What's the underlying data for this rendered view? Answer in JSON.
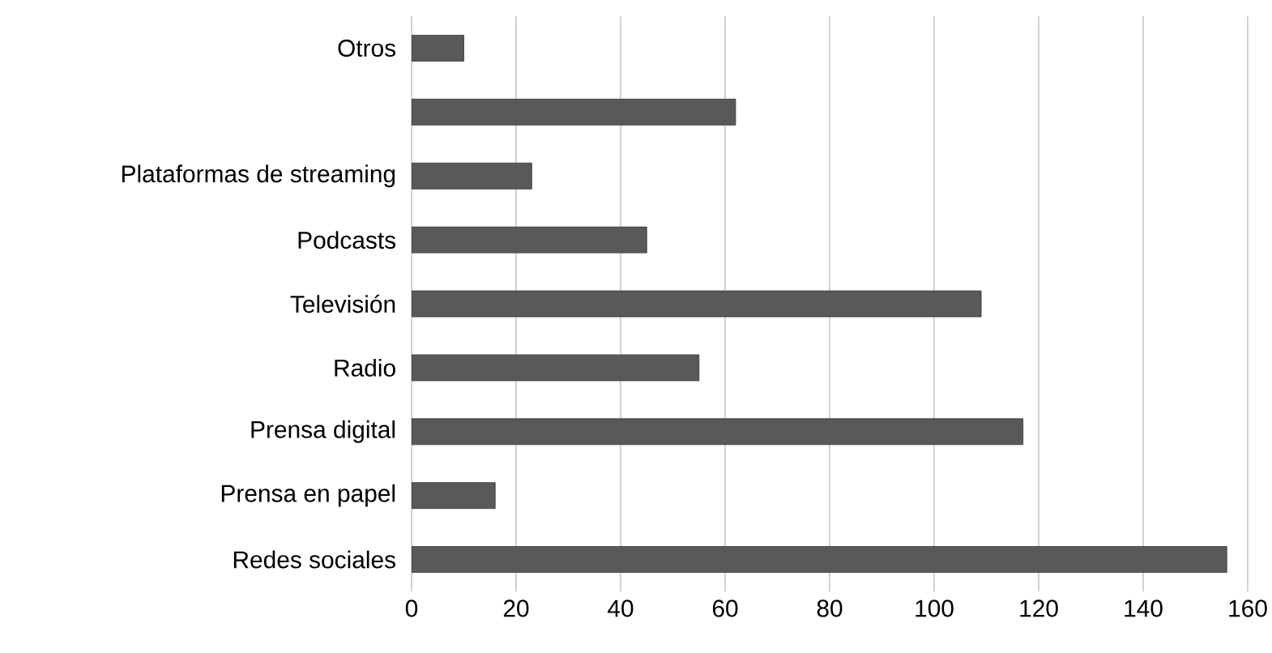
{
  "chart_data": {
    "type": "bar",
    "orientation": "horizontal",
    "categories": [
      "Otros",
      null,
      "Plataformas de streaming",
      "Podcasts",
      "Televisión",
      "Radio",
      "Prensa digital",
      "Prensa en papel",
      "Redes sociales"
    ],
    "values": [
      10,
      62,
      23,
      45,
      109,
      55,
      117,
      16,
      156
    ],
    "color": "#595959",
    "xlim": [
      0,
      160
    ],
    "xticks": [
      0,
      20,
      40,
      60,
      80,
      100,
      120,
      140,
      160
    ],
    "grid": "x"
  }
}
